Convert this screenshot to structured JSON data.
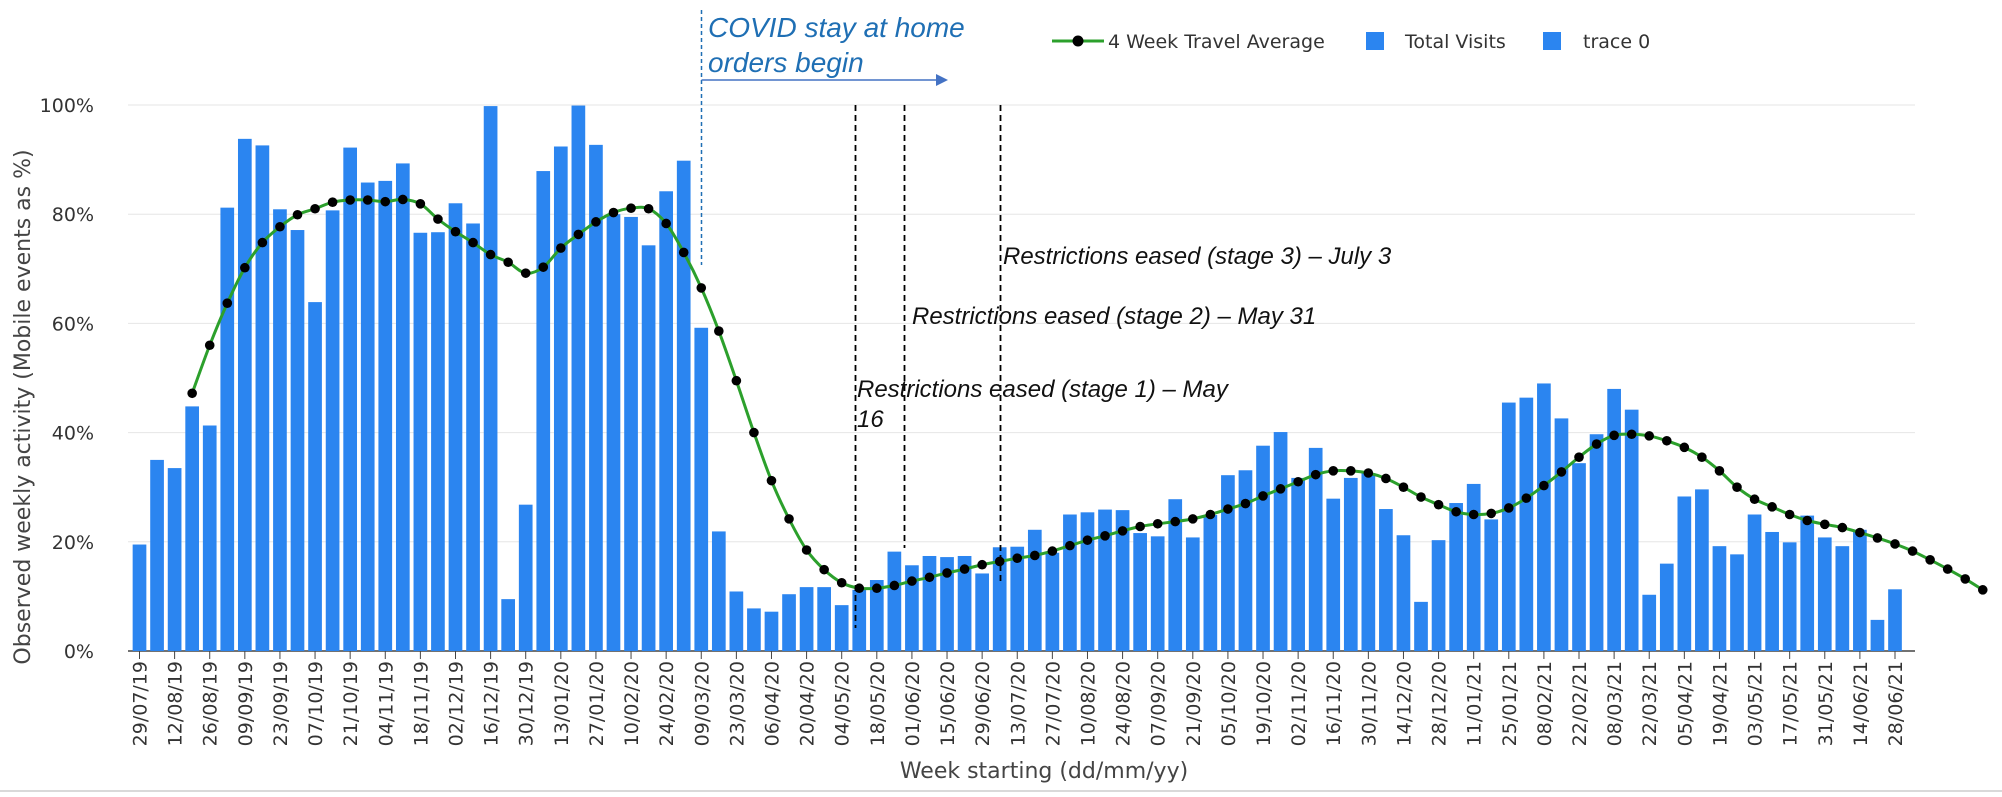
{
  "chart_data": {
    "type": "bar",
    "xlabel": "Week starting (dd/mm/yy)",
    "ylabel": "Observed weekly activity (Mobile events as %)",
    "ylim": [
      0,
      100
    ],
    "y_tick_labels": [
      "0%",
      "20%",
      "40%",
      "60%",
      "80%",
      "100%"
    ],
    "y_tick_values": [
      0,
      20,
      40,
      60,
      80,
      100
    ],
    "grid": true,
    "legend_position": "top-right",
    "colors": {
      "bars": "#2b85f0",
      "line": "#2ca02c",
      "markers": "#000000",
      "annotation_blue": "#1f6fb4"
    },
    "x_tick_labels": [
      "29/07/19",
      "12/08/19",
      "26/08/19",
      "09/09/19",
      "23/09/19",
      "07/10/19",
      "21/10/19",
      "04/11/19",
      "18/11/19",
      "02/12/19",
      "16/12/19",
      "30/12/19",
      "13/01/20",
      "27/01/20",
      "10/02/20",
      "24/02/20",
      "09/03/20",
      "23/03/20",
      "06/04/20",
      "20/04/20",
      "04/05/20",
      "18/05/20",
      "01/06/20",
      "15/06/20",
      "29/06/20",
      "13/07/20",
      "27/07/20",
      "10/08/20",
      "24/08/20",
      "07/09/20",
      "21/09/20",
      "05/10/20",
      "19/10/20",
      "02/11/20",
      "16/11/20",
      "30/11/20",
      "14/12/20",
      "28/12/20",
      "11/01/21",
      "25/01/21",
      "08/02/21",
      "22/02/21",
      "08/03/21",
      "22/03/21",
      "05/04/21",
      "19/04/21",
      "03/05/21",
      "17/05/21",
      "31/05/21",
      "14/06/21",
      "28/06/21"
    ],
    "series": [
      {
        "name": "Total Visits",
        "type": "bar",
        "values": [
          19.5,
          35,
          33.5,
          44.8,
          41.3,
          81.2,
          93.8,
          92.6,
          80.9,
          77.1,
          63.9,
          80.7,
          92.2,
          85.8,
          86.1,
          89.3,
          76.6,
          76.7,
          82,
          78.3,
          99.8,
          9.5,
          26.8,
          87.9,
          92.4,
          99.9,
          92.7,
          80,
          79.5,
          74.3,
          84.2,
          89.8,
          59.2,
          21.9,
          10.9,
          7.8,
          7.2,
          10.4,
          11.7,
          11.7,
          8.4,
          11.2,
          13,
          18.2,
          15.7,
          17.4,
          17.2,
          17.4,
          14.2,
          19,
          19.1,
          22.2,
          18,
          25,
          25.4,
          25.9,
          25.8,
          21.6,
          21,
          27.8,
          20.8,
          24.9,
          32.2,
          33.1,
          37.6,
          40.1,
          31.7,
          37.2,
          27.9,
          31.7,
          32.6,
          26,
          21.2,
          9,
          20.3,
          27.1,
          30.6,
          24.1,
          45.5,
          46.4,
          49,
          42.6,
          34.4,
          39.7,
          48,
          44.2,
          10.3,
          16,
          28.3,
          29.6,
          19.2,
          17.7,
          25,
          21.8,
          19.9,
          24.8,
          20.8,
          19.2,
          22.2,
          5.7,
          11.3
        ]
      },
      {
        "name": "trace 0",
        "type": "bar",
        "values": []
      },
      {
        "name": "4 Week Travel Average",
        "type": "line",
        "values": [
          null,
          null,
          null,
          47.2,
          56,
          63.7,
          70.2,
          74.8,
          77.7,
          79.9,
          81,
          82.2,
          82.6,
          82.6,
          82.3,
          82.7,
          81.9,
          79.1,
          76.8,
          74.8,
          72.6,
          71.2,
          69.2,
          70.3,
          73.8,
          76.3,
          78.6,
          80.3,
          81.1,
          81,
          78.3,
          73,
          66.5,
          58.6,
          49.5,
          40,
          31.2,
          24.2,
          18.5,
          14.9,
          12.5,
          11.5,
          11.5,
          12,
          12.8,
          13.5,
          14.3,
          15,
          15.8,
          16.4,
          17,
          17.5,
          18.3,
          19.3,
          20.3,
          21.1,
          22,
          22.8,
          23.3,
          23.7,
          24.2,
          25,
          26,
          27,
          28.4,
          29.7,
          31,
          32.3,
          33,
          33,
          32.6,
          31.6,
          30,
          28.2,
          26.8,
          25.5,
          25,
          25.2,
          26.2,
          28,
          30.3,
          32.8,
          35.5,
          37.9,
          39.5,
          39.7,
          39.4,
          38.5,
          37.3,
          35.5,
          33,
          30,
          27.8,
          26.4,
          25,
          23.9,
          23.2,
          22.6,
          21.7,
          20.7,
          19.6,
          18.3,
          16.7,
          15,
          13.2,
          11.2
        ]
      }
    ],
    "annotations": [
      {
        "lines": [
          "COVID stay at home",
          "orders begin"
        ]
      },
      {
        "lines": [
          "Restrictions eased (stage 1) – May",
          "16"
        ]
      },
      {
        "lines": [
          "Restrictions eased (stage 2) – May 31"
        ]
      },
      {
        "lines": [
          "Restrictions eased (stage 3) – July 3"
        ]
      }
    ]
  }
}
